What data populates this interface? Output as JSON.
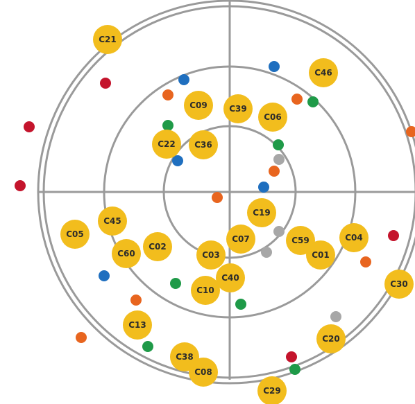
{
  "colors": {
    "background": "#ffffff",
    "ring": "#9a9a9a",
    "axis": "#9a9a9a",
    "node_primary": "#f2bd1d",
    "node_orange": "#e8651f",
    "node_blue": "#1f6fbf",
    "node_red": "#c4142c",
    "node_green": "#1f9a48",
    "node_grey": "#a7a7a7"
  },
  "nodes": [
    {
      "label": "C21",
      "kind": "primary"
    },
    {
      "label": "C46",
      "kind": "primary"
    },
    {
      "label": "C09",
      "kind": "primary"
    },
    {
      "label": "C39",
      "kind": "primary"
    },
    {
      "label": "C06",
      "kind": "primary"
    },
    {
      "label": "C22",
      "kind": "primary"
    },
    {
      "label": "C36",
      "kind": "primary"
    },
    {
      "label": "C19",
      "kind": "primary"
    },
    {
      "label": "C45",
      "kind": "primary"
    },
    {
      "label": "C05",
      "kind": "primary"
    },
    {
      "label": "C02",
      "kind": "primary"
    },
    {
      "label": "C60",
      "kind": "primary"
    },
    {
      "label": "C07",
      "kind": "primary"
    },
    {
      "label": "C03",
      "kind": "primary"
    },
    {
      "label": "C59",
      "kind": "primary"
    },
    {
      "label": "C04",
      "kind": "primary"
    },
    {
      "label": "C01",
      "kind": "primary"
    },
    {
      "label": "C40",
      "kind": "primary"
    },
    {
      "label": "C10",
      "kind": "primary"
    },
    {
      "label": "C30",
      "kind": "primary"
    },
    {
      "label": "C13",
      "kind": "primary"
    },
    {
      "label": "C20",
      "kind": "primary"
    },
    {
      "label": "C38",
      "kind": "primary"
    },
    {
      "label": "C08",
      "kind": "primary"
    },
    {
      "label": "C29",
      "kind": "primary"
    }
  ],
  "small_nodes": [
    {
      "kind": "blue"
    },
    {
      "kind": "red"
    },
    {
      "kind": "blue"
    },
    {
      "kind": "orange"
    },
    {
      "kind": "orange"
    },
    {
      "kind": "green"
    },
    {
      "kind": "red"
    },
    {
      "kind": "green"
    },
    {
      "kind": "green"
    },
    {
      "kind": "grey"
    },
    {
      "kind": "blue"
    },
    {
      "kind": "orange"
    },
    {
      "kind": "blue"
    },
    {
      "kind": "red"
    },
    {
      "kind": "orange"
    },
    {
      "kind": "grey"
    },
    {
      "kind": "grey"
    },
    {
      "kind": "red"
    },
    {
      "kind": "orange"
    },
    {
      "kind": "blue"
    },
    {
      "kind": "green"
    },
    {
      "kind": "orange"
    },
    {
      "kind": "green"
    },
    {
      "kind": "grey"
    },
    {
      "kind": "orange"
    },
    {
      "kind": "green"
    },
    {
      "kind": "red"
    },
    {
      "kind": "green"
    },
    {
      "kind": "orange"
    }
  ]
}
